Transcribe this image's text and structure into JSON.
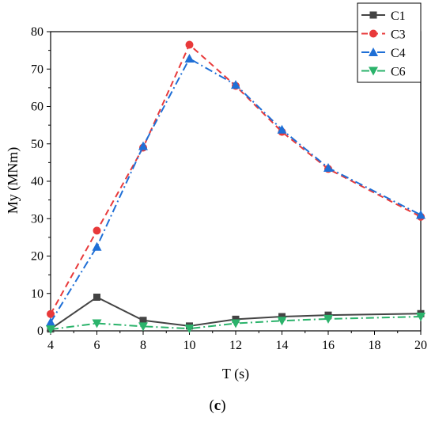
{
  "caption": {
    "open": "(",
    "letter": "c",
    "close": ")"
  },
  "colors": {
    "C1": "#444444",
    "C3": "#e8393a",
    "C4": "#1f6fd6",
    "C6": "#2bb36b"
  },
  "chart_data": {
    "type": "line",
    "title": "",
    "xlabel": "T (s)",
    "ylabel": "My (MNm)",
    "xlim": [
      4,
      20
    ],
    "ylim": [
      0,
      80
    ],
    "xticks": [
      4,
      6,
      8,
      10,
      12,
      14,
      16,
      18,
      20
    ],
    "yticks": [
      0,
      10,
      20,
      30,
      40,
      50,
      60,
      70,
      80
    ],
    "x": [
      4,
      6,
      8,
      10,
      12,
      14,
      16,
      20
    ],
    "legend_position": "top-right",
    "grid": false,
    "series": [
      {
        "name": "C1",
        "values": [
          0.5,
          9.0,
          2.8,
          1.3,
          3.1,
          3.8,
          4.2,
          4.6
        ],
        "marker": "square",
        "line": "solid"
      },
      {
        "name": "C3",
        "values": [
          4.5,
          26.8,
          49.0,
          76.5,
          65.5,
          53.2,
          43.3,
          30.5
        ],
        "marker": "circle",
        "line": "dash"
      },
      {
        "name": "C4",
        "values": [
          2.3,
          22.5,
          49.4,
          72.8,
          65.8,
          53.8,
          43.6,
          31.0
        ],
        "marker": "triangle-up",
        "line": "dashdot"
      },
      {
        "name": "C6",
        "values": [
          0.4,
          2.0,
          1.2,
          0.6,
          2.0,
          2.7,
          3.2,
          3.8
        ],
        "marker": "triangle-down",
        "line": "dashdot"
      }
    ]
  }
}
